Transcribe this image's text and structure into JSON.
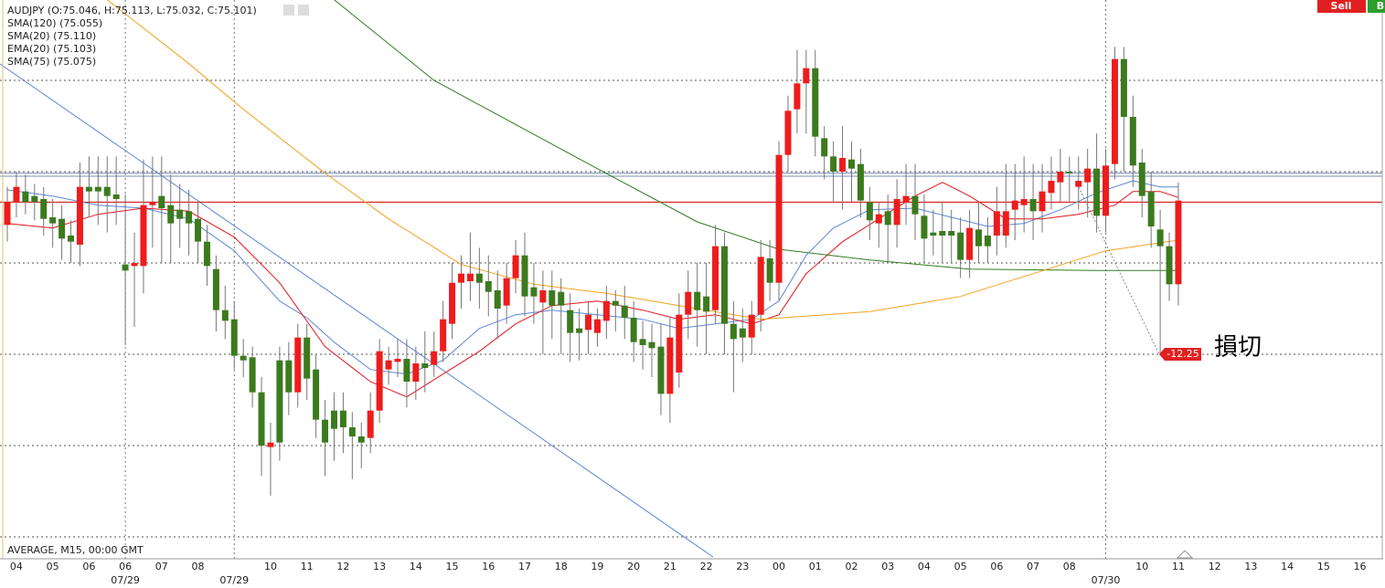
{
  "chart_data": {
    "type": "candlestick",
    "header": "AUDJPY (O:75.046, H:75.113, L:75.032, C:75.101)",
    "footer": "AVERAGE, M15, 00:00 GMT",
    "buttons": [
      "Sell",
      "B"
    ],
    "up_color": "#ee1c1c",
    "down_color": "#3c7a1e",
    "open": [
      75.085,
      75.1,
      75.107,
      75.104,
      75.102,
      75.09,
      75.089,
      75.078,
      75.072,
      75.11,
      75.11,
      75.11,
      75.105,
      75.059,
      75.058,
      75.058,
      75.098,
      75.104,
      75.098,
      75.095,
      75.094,
      75.089,
      75.074,
      75.056,
      75.029,
      75.023,
      74.999,
      74.998,
      74.975,
      74.939,
      74.996,
      74.996,
      74.975,
      75.011,
      74.99,
      74.957,
      74.963,
      74.963,
      74.952,
      74.946,
      74.945,
      74.963,
      74.99,
      74.995,
      74.997,
      74.982,
      74.994,
      74.993,
      75.002,
      75.02,
      75.047,
      75.048,
      75.053,
      75.048,
      75.042,
      75.032,
      75.05,
      75.065,
      75.044,
      75.034,
      75.042,
      75.041,
      75.029,
      75.017,
      75.016,
      75.014,
      75.022,
      75.035,
      75.032,
      75.024,
      75.01,
      75.008,
      75.005,
      74.974,
      74.988,
      75.026,
      75.041,
      75.038,
      75.029,
      75.071,
      75.02,
      75.017,
      75.011,
      75.026,
      75.063,
      75.047,
      75.131,
      75.161,
      75.178,
      75.188,
      75.142,
      75.13,
      75.12,
      75.128,
      75.125,
      75.1,
      75.086,
      75.094,
      75.085,
      75.1,
      75.104,
      75.091,
      75.08,
      75.081,
      75.081,
      75.08,
      75.062,
      75.082,
      75.078,
      75.078,
      75.078,
      75.095,
      75.098,
      75.102,
      75.094,
      75.106,
      75.113,
      75.12,
      75.11,
      75.113,
      75.122,
      75.091,
      75.125,
      75.194,
      75.156,
      75.126,
      75.107,
      75.082,
      75.071,
      75.046
    ],
    "high": [
      75.11,
      75.12,
      75.118,
      75.112,
      75.11,
      75.102,
      75.098,
      75.088,
      75.126,
      75.13,
      75.13,
      75.13,
      75.13,
      75.105,
      75.08,
      75.128,
      75.13,
      75.13,
      75.118,
      75.112,
      75.108,
      75.1,
      75.085,
      75.065,
      75.045,
      75.035,
      75.01,
      75.005,
      74.985,
      74.955,
      75.005,
      75.008,
      75.02,
      75.02,
      75.0,
      74.97,
      74.975,
      74.975,
      74.962,
      74.955,
      74.975,
      75.01,
      75.005,
      75.01,
      75.01,
      75.005,
      75.015,
      75.015,
      75.035,
      75.06,
      75.065,
      75.08,
      75.07,
      75.065,
      75.055,
      75.06,
      75.075,
      75.08,
      75.06,
      75.055,
      75.055,
      75.05,
      75.04,
      75.03,
      75.035,
      75.03,
      75.045,
      75.042,
      75.045,
      75.035,
      75.022,
      75.02,
      75.02,
      75.025,
      75.04,
      75.055,
      75.06,
      75.06,
      75.085,
      75.08,
      75.035,
      75.03,
      75.035,
      75.075,
      75.075,
      75.14,
      75.17,
      75.2,
      75.2,
      75.2,
      75.15,
      75.14,
      75.15,
      75.14,
      75.135,
      75.11,
      75.1,
      75.105,
      75.115,
      75.125,
      75.125,
      75.105,
      75.095,
      75.1,
      75.095,
      75.09,
      75.095,
      75.1,
      75.09,
      75.11,
      75.125,
      75.125,
      75.13,
      75.125,
      75.125,
      75.13,
      75.135,
      75.13,
      75.13,
      75.135,
      75.145,
      75.135,
      75.202,
      75.202,
      75.17,
      75.135,
      75.12,
      75.095,
      75.08,
      75.113
    ],
    "low": [
      75.074,
      75.09,
      75.092,
      75.088,
      75.078,
      75.07,
      75.062,
      75.06,
      75.058,
      75.09,
      75.085,
      75.08,
      75.085,
      75.006,
      75.018,
      75.04,
      75.07,
      75.06,
      75.06,
      75.07,
      75.065,
      75.06,
      75.045,
      75.015,
      75.01,
      74.99,
      74.985,
      74.965,
      74.92,
      74.907,
      74.93,
      74.96,
      74.965,
      74.97,
      74.945,
      74.92,
      74.93,
      74.935,
      74.918,
      74.925,
      74.935,
      74.955,
      74.98,
      74.985,
      74.965,
      74.97,
      74.975,
      74.985,
      74.995,
      75.01,
      75.03,
      75.035,
      75.03,
      75.025,
      75.01,
      75.02,
      75.04,
      75.025,
      75.02,
      75.0,
      75.01,
      75.0,
      74.995,
      74.996,
      75.0,
      75.005,
      75.01,
      75.015,
      75.01,
      74.995,
      74.99,
      74.985,
      74.96,
      74.955,
      74.978,
      75.01,
      75.005,
      75.0,
      75.02,
      75.0,
      74.975,
      74.995,
      75.0,
      75.015,
      75.035,
      75.035,
      75.12,
      75.145,
      75.145,
      75.13,
      75.115,
      75.1,
      75.095,
      75.1,
      75.09,
      75.075,
      75.07,
      75.06,
      75.07,
      75.085,
      75.075,
      75.06,
      75.065,
      75.06,
      75.06,
      75.05,
      75.05,
      75.06,
      75.06,
      75.065,
      75.07,
      75.075,
      75.08,
      75.075,
      75.08,
      75.095,
      75.1,
      75.1,
      75.095,
      75.09,
      75.08,
      75.08,
      75.115,
      75.12,
      75.11,
      75.09,
      75.07,
      75.0,
      75.035,
      75.032
    ],
    "close": [
      75.1,
      75.11,
      75.1,
      75.1,
      75.089,
      75.086,
      75.076,
      75.074,
      75.11,
      75.107,
      75.107,
      75.104,
      75.102,
      75.055,
      75.06,
      75.098,
      75.1,
      75.096,
      75.086,
      75.089,
      75.086,
      75.074,
      75.058,
      75.029,
      75.022,
      74.999,
      74.996,
      74.975,
      74.94,
      74.942,
      74.942,
      74.975,
      75.011,
      74.984,
      74.957,
      74.942,
      74.951,
      74.952,
      74.946,
      74.942,
      74.963,
      75.002,
      74.996,
      74.997,
      74.982,
      74.994,
      74.991,
      75.002,
      75.023,
      75.047,
      75.053,
      75.053,
      75.047,
      75.041,
      75.03,
      75.05,
      75.065,
      75.038,
      75.038,
      75.042,
      75.032,
      75.032,
      75.014,
      75.014,
      75.026,
      75.023,
      75.035,
      75.032,
      75.024,
      75.008,
      75.006,
      75.004,
      74.974,
      75.011,
      75.026,
      75.041,
      75.029,
      75.028,
      75.071,
      75.02,
      75.01,
      75.011,
      75.026,
      75.064,
      75.047,
      75.131,
      75.16,
      75.178,
      75.188,
      75.143,
      75.13,
      75.12,
      75.129,
      75.122,
      75.101,
      75.088,
      75.092,
      75.085,
      75.102,
      75.104,
      75.092,
      75.076,
      75.078,
      75.078,
      75.078,
      75.062,
      75.083,
      75.071,
      75.071,
      75.094,
      75.094,
      75.101,
      75.102,
      75.094,
      75.107,
      75.114,
      75.12,
      75.119,
      75.114,
      75.122,
      75.091,
      75.124,
      75.194,
      75.156,
      75.124,
      75.104,
      75.084,
      75.071,
      75.046,
      75.101
    ],
    "series": [
      {
        "name": "SMA(120) (75.055)",
        "color": "#2e7d1e",
        "x": [
          36,
          47,
          65,
          76,
          85,
          95,
          106,
          120,
          129
        ],
        "values": [
          75.233,
          75.18,
          75.122,
          75.087,
          75.069,
          75.062,
          75.056,
          75.055,
          75.055
        ]
      },
      {
        "name": "SMA(20) (75.110)",
        "color": "#5b86d8",
        "x": [
          0,
          5,
          10,
          15,
          20,
          25,
          30,
          33,
          36,
          40,
          44,
          48,
          52,
          56,
          60,
          65,
          70,
          74,
          78,
          82,
          85,
          88,
          91,
          95,
          100,
          104,
          108,
          112,
          116,
          120,
          124,
          127,
          129
        ],
        "values": [
          75.108,
          75.104,
          75.098,
          75.096,
          75.089,
          75.068,
          75.035,
          75.024,
          75.008,
          74.99,
          74.987,
          74.996,
          75.017,
          75.026,
          75.029,
          75.026,
          75.023,
          75.017,
          75.02,
          75.023,
          75.035,
          75.065,
          75.083,
          75.095,
          75.096,
          75.09,
          75.084,
          75.086,
          75.095,
          75.106,
          75.114,
          75.11,
          75.11
        ]
      },
      {
        "name": "EMA(20) (75.103)",
        "color": "#e4141b",
        "x": [
          0,
          5,
          10,
          15,
          20,
          25,
          30,
          35,
          40,
          44,
          48,
          52,
          56,
          60,
          65,
          70,
          74,
          78,
          82,
          85,
          88,
          92,
          96,
          100,
          103,
          106,
          110,
          114,
          118,
          122,
          124,
          127,
          129
        ],
        "values": [
          75.086,
          75.083,
          75.092,
          75.096,
          75.094,
          75.077,
          75.047,
          75.005,
          74.982,
          74.972,
          74.987,
          75.002,
          75.02,
          75.032,
          75.035,
          75.029,
          75.023,
          75.026,
          75.02,
          75.026,
          75.053,
          75.074,
          75.089,
          75.104,
          75.113,
          75.104,
          75.089,
          75.089,
          75.092,
          75.098,
          75.107,
          75.107,
          75.103
        ]
      },
      {
        "name": "SMA(75) (75.075)",
        "color": "#f5a21d",
        "x": [
          11,
          20,
          26,
          35,
          42,
          50,
          58,
          66,
          74,
          83,
          95,
          105,
          113,
          121,
          129
        ],
        "values": [
          75.233,
          75.191,
          75.161,
          75.119,
          75.089,
          75.059,
          75.046,
          75.04,
          75.032,
          75.023,
          75.028,
          75.038,
          75.053,
          75.068,
          75.075
        ]
      }
    ],
    "hlines": [
      {
        "value": 75.119,
        "color": "#7a8fb5"
      },
      {
        "value": 75.117,
        "color": "#7a8fb5"
      },
      {
        "value": 75.1,
        "color": "#d00000"
      }
    ],
    "stop_loss": {
      "label": "-12.25",
      "value": 75.0,
      "note": "損切"
    },
    "ylim": [
      74.8656,
      75.2328
    ],
    "yticks": [
      74.88,
      74.94,
      75.0,
      75.06,
      75.12,
      75.18
    ],
    "grid": true,
    "x_labels": [
      "04",
      "05",
      "06",
      "06",
      "07",
      "08",
      null,
      "10",
      "11",
      "12",
      "13",
      "14",
      "15",
      "16",
      "17",
      "18",
      "19",
      "20",
      "21",
      "22",
      "23",
      "00",
      "01",
      "02",
      "03",
      "04",
      "05",
      "06",
      "07",
      "08",
      null,
      "10",
      "11",
      "12",
      "13",
      "14",
      "15",
      "16"
    ],
    "date_labels": [
      null,
      null,
      null,
      "07/29",
      null,
      null,
      "07/29",
      null,
      null,
      null,
      null,
      null,
      null,
      null,
      null,
      null,
      null,
      null,
      null,
      null,
      null,
      null,
      null,
      null,
      null,
      null,
      null,
      null,
      null,
      null,
      "07/30",
      null,
      null,
      null,
      null,
      null,
      null,
      null
    ]
  }
}
